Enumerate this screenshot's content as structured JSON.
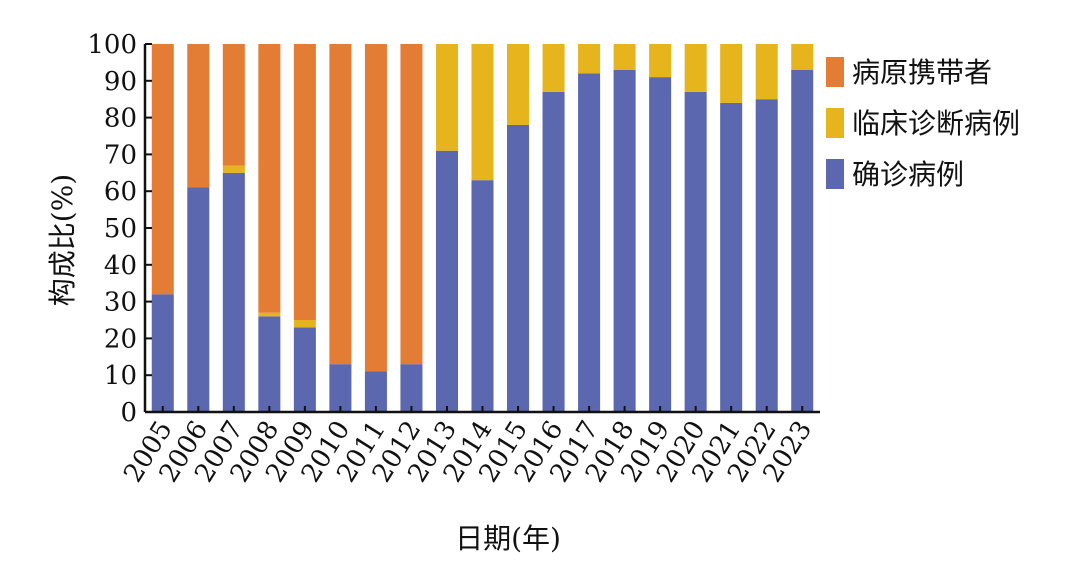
{
  "chart_data": {
    "type": "bar",
    "stacked": true,
    "percent": true,
    "title": "",
    "xlabel": "日期(年)",
    "ylabel": "构成比(%)",
    "ylim": [
      0,
      100
    ],
    "yticks": [
      0,
      10,
      20,
      30,
      40,
      50,
      60,
      70,
      80,
      90,
      100
    ],
    "grid": false,
    "legend_position": "right",
    "categories": [
      "2005",
      "2006",
      "2007",
      "2008",
      "2009",
      "2010",
      "2011",
      "2012",
      "2013",
      "2014",
      "2015",
      "2016",
      "2017",
      "2018",
      "2019",
      "2020",
      "2021",
      "2022",
      "2023"
    ],
    "series": [
      {
        "name": "确诊病例",
        "color": "#5b67ae",
        "values": [
          32,
          61,
          65,
          26,
          23,
          13,
          11,
          13,
          71,
          63,
          78,
          87,
          92,
          93,
          91,
          87,
          84,
          85,
          93
        ]
      },
      {
        "name": "临床诊断病例",
        "color": "#e6b41d",
        "values": [
          0,
          0,
          2,
          1,
          2,
          0,
          0,
          0,
          29,
          37,
          22,
          13,
          8,
          7,
          9,
          13,
          16,
          15,
          7
        ]
      },
      {
        "name": "病原携带者",
        "color": "#e37c35",
        "values": [
          68,
          39,
          33,
          73,
          75,
          87,
          89,
          87,
          0,
          0,
          0,
          0,
          0,
          0,
          0,
          0,
          0,
          0,
          0
        ]
      }
    ],
    "legend_order": [
      "病原携带者",
      "临床诊断病例",
      "确诊病例"
    ]
  }
}
